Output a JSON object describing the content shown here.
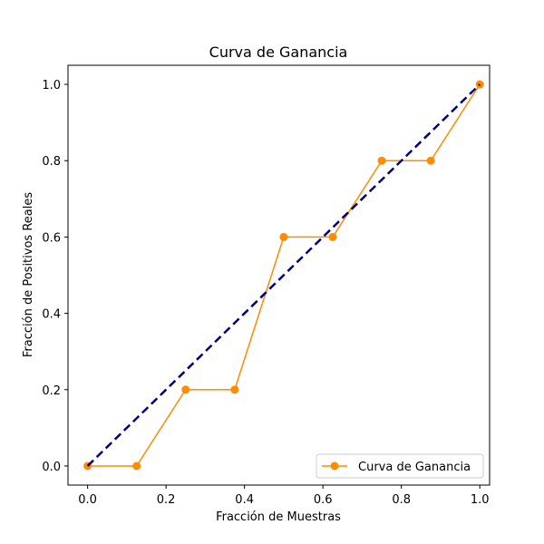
{
  "chart_data": {
    "type": "line",
    "title": "Curva de Ganancia",
    "xlabel": "Fracción de Muestras",
    "ylabel": "Fracción de Positivos Reales",
    "xlim": [
      -0.05,
      1.025
    ],
    "ylim": [
      -0.05,
      1.05
    ],
    "x_ticks": [
      "0.0",
      "0.2",
      "0.4",
      "0.6",
      "0.8",
      "1.0"
    ],
    "y_ticks": [
      "0.0",
      "0.2",
      "0.4",
      "0.6",
      "0.8",
      "1.0"
    ],
    "grid": false,
    "legend_position": "lower-right",
    "series": [
      {
        "name": "Curva de Ganancia",
        "color": "#ff8c00",
        "marker": "circle",
        "x": [
          0.0,
          0.125,
          0.25,
          0.375,
          0.5,
          0.625,
          0.75,
          0.875,
          1.0
        ],
        "y": [
          0.0,
          0.0,
          0.2,
          0.2,
          0.6,
          0.6,
          0.8,
          0.8,
          1.0
        ]
      },
      {
        "color": "#000080",
        "style": "dashed",
        "x": [
          0.0,
          1.0
        ],
        "y": [
          0.0,
          1.0
        ]
      }
    ]
  }
}
